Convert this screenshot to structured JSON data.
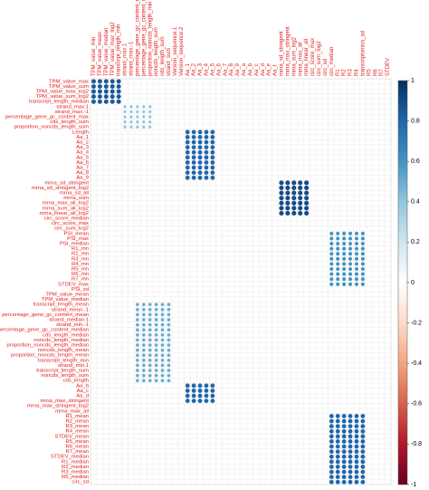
{
  "chart_data": {
    "type": "heatmap",
    "rows": [
      "TPM_value_max",
      "TPM_value_sum",
      "TPM_value_max_log2",
      "TPM_value_sum_log2",
      "transcript_length_median",
      "strand_max.1",
      "strand_max.-1",
      "percentage_gene_gc_content_max",
      "cds_length_sum",
      "proportion_noncds_length_sum",
      "Length",
      "Aa_1",
      "Aa_2",
      "Aa_3",
      "Aa_4",
      "Aa_5",
      "Aa_6",
      "Aa_7",
      "Aa_8",
      "Aa_9",
      "mrna_sd_stringent",
      "mrna_sd_stringent_log2",
      "mrna_sd_all",
      "mrna_sum",
      "mrna_max_all_log2",
      "mrna_sum_all_log2",
      "mrna_linear_all_log2",
      "circ_score_median",
      "circ_score_max",
      "circ_sum_log2",
      "PSI_mean",
      "PSI_max",
      "PSI_median",
      "R1_mn",
      "R2_mn",
      "R3_mn",
      "R4_mn",
      "R5_mn",
      "R6_mn",
      "R7_mn",
      "STDEV_max",
      "PSI_sd",
      "TPM_value_mean",
      "TPM_value_median",
      "transcript_length_mean",
      "strand_mean.-1",
      "percentage_gene_gc_content_mean",
      "strand_median.1",
      "strand_min.-1",
      "percentage_gene_gc_content_median",
      "cds_length_median",
      "noncds_length_median",
      "proportion_noncds_length_median",
      "noncds_length_mean",
      "proportion_noncds_length_mean",
      "transcript_length_min",
      "strand_min.1",
      "transcript_length_sum",
      "noncds_length_sum",
      "cds_length",
      "Aa_b",
      "Aa_c",
      "Aa_d",
      "mrna_max_stringent",
      "mrna_max_stringent_log2",
      "mrna_max_all",
      "R1_mean",
      "R2_mean",
      "R3_mean",
      "R4_mean",
      "STDEV_mean",
      "R5_mean",
      "R6_mean",
      "R7_mean",
      "STDEV_median",
      "R1_median",
      "R2_median",
      "R3_median",
      "R5_median",
      "circ_sd"
    ],
    "columns": [
      "TPM_value_min",
      "TPM_value_mean",
      "TPM_value_median",
      "TPM_value_max_log2",
      "transcript_length_min",
      "strand_max.1",
      "strand_max.-1",
      "percentage_gene_gc_content_min",
      "percentage_gene_gc_content_max",
      "proportion_noncds_length_min",
      "noncds_length_sum",
      "cds_length_sum",
      "strand_sum",
      "Version_sequence.1",
      "Version_sequence.2",
      "Aa_1",
      "Aa_2",
      "Aa_3",
      "Aa_4",
      "Aa_5",
      "Aa_6",
      "Aa_7",
      "Aa_8",
      "Aa_9",
      "Aa_a",
      "Aa_b",
      "Aa_c",
      "Aa_d",
      "Aa_e",
      "Aa_f",
      "mrna_sd_stringent",
      "mrna_max_stringent",
      "mrna_sum_log2",
      "mrna_max_all",
      "mrna_linear_all",
      "circ_score_max",
      "circ_sum_log2",
      "circ_sd",
      "circ_median",
      "R1",
      "R2",
      "R3",
      "R4",
      "transcriptomics_sd",
      "R5",
      "R6",
      "R7",
      "STDEV"
    ],
    "colorbar": {
      "min": -1,
      "max": 1,
      "ticks": [
        1,
        0.8,
        0.6,
        0.4,
        0.2,
        0,
        -0.2,
        -0.4,
        -0.6,
        -0.8,
        -1
      ],
      "colors": [
        "#67001f",
        "#b2182b",
        "#d6604d",
        "#f4a582",
        "#fddbc7",
        "#ffffff",
        "#d1e5f0",
        "#92c5de",
        "#4393c3",
        "#2166ac",
        "#053061"
      ]
    },
    "blocks": [
      {
        "rows": [
          0,
          4
        ],
        "cols": [
          0,
          4
        ],
        "value": 0.85
      },
      {
        "rows": [
          5,
          9
        ],
        "cols": [
          5,
          9
        ],
        "value": 0.4
      },
      {
        "rows": [
          10,
          19
        ],
        "cols": [
          15,
          19
        ],
        "value": 0.8
      },
      {
        "rows": [
          20,
          26
        ],
        "cols": [
          30,
          34
        ],
        "value": 0.9
      },
      {
        "rows": [
          30,
          40
        ],
        "cols": [
          38,
          43
        ],
        "value": 0.6
      },
      {
        "rows": [
          44,
          59
        ],
        "cols": [
          7,
          12
        ],
        "value": 0.5
      },
      {
        "rows": [
          60,
          63
        ],
        "cols": [
          15,
          19
        ],
        "value": 0.8
      },
      {
        "rows": [
          66,
          79
        ],
        "cols": [
          38,
          43
        ],
        "value": 0.8
      }
    ]
  }
}
